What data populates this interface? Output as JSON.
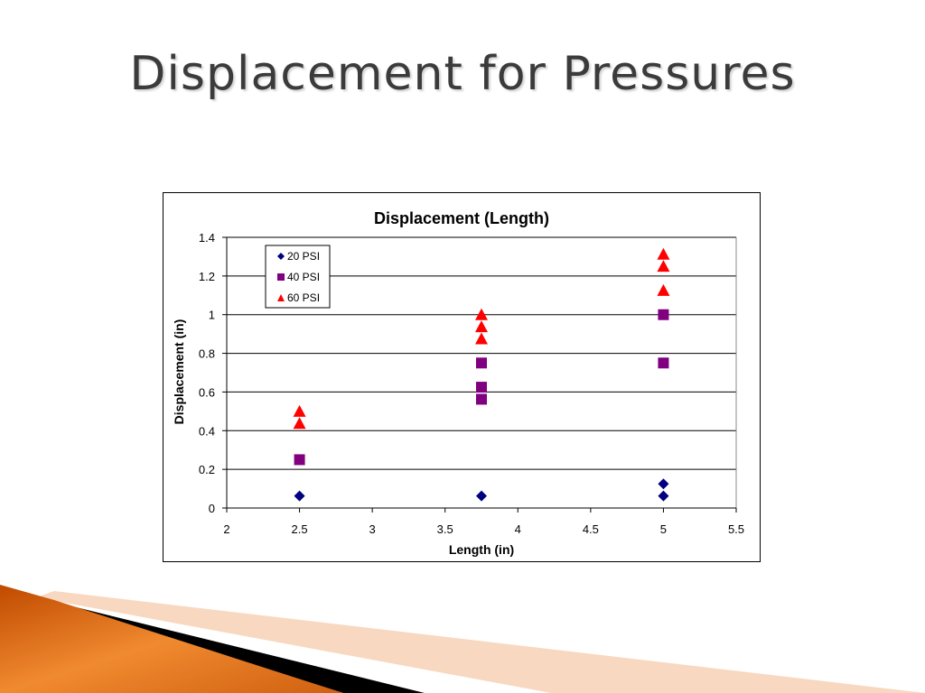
{
  "slide": {
    "title": "Displacement for Pressures"
  },
  "chart_data": {
    "type": "scatter",
    "title": "Displacement (Length)",
    "xlabel": "Length (in)",
    "ylabel": "Displacement (in)",
    "xlim": [
      2,
      5.5
    ],
    "ylim": [
      0,
      1.4
    ],
    "xticks": [
      "2",
      "2.5",
      "3",
      "3.5",
      "4",
      "4.5",
      "5",
      "5.5"
    ],
    "yticks": [
      "0",
      "0.2",
      "0.4",
      "0.6",
      "0.8",
      "1",
      "1.2",
      "1.4"
    ],
    "grid": "horizontal",
    "legend_position": "top-left",
    "series": [
      {
        "name": "20 PSI",
        "marker": "diamond",
        "color": "#000080",
        "points": [
          [
            2.5,
            0.0625
          ],
          [
            3.75,
            0.0625
          ],
          [
            5.0,
            0.125
          ],
          [
            5.0,
            0.0625
          ]
        ]
      },
      {
        "name": "40 PSI",
        "marker": "square",
        "color": "#800080",
        "points": [
          [
            2.5,
            0.25
          ],
          [
            3.75,
            0.75
          ],
          [
            3.75,
            0.625
          ],
          [
            3.75,
            0.5625
          ],
          [
            5.0,
            1.0
          ],
          [
            5.0,
            0.75
          ]
        ]
      },
      {
        "name": "60 PSI",
        "marker": "triangle",
        "color": "#ff0000",
        "points": [
          [
            2.5,
            0.5
          ],
          [
            2.5,
            0.4375
          ],
          [
            3.75,
            1.0
          ],
          [
            3.75,
            0.9375
          ],
          [
            3.75,
            0.875
          ],
          [
            5.0,
            1.3125
          ],
          [
            5.0,
            1.25
          ],
          [
            5.0,
            1.125
          ]
        ]
      }
    ]
  }
}
